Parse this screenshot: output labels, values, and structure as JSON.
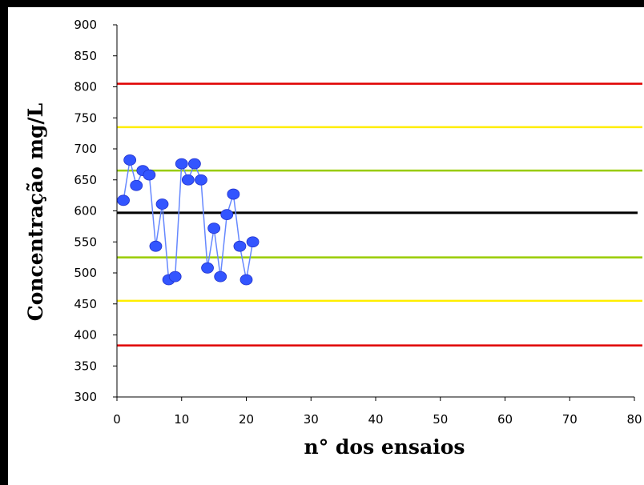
{
  "chart_data": {
    "type": "line",
    "title": "",
    "xlabel": "n° dos ensaios",
    "ylabel": "Concentração mg/L",
    "xlim": [
      0,
      80
    ],
    "ylim": [
      300,
      900
    ],
    "x_ticks": [
      0,
      10,
      20,
      30,
      40,
      50,
      60,
      70,
      80
    ],
    "y_ticks": [
      300,
      350,
      400,
      450,
      500,
      550,
      600,
      650,
      700,
      750,
      800,
      850,
      900
    ],
    "x_tick_labels": [
      "0",
      "10",
      "20",
      "30",
      "40",
      "50",
      "60",
      "70",
      "80"
    ],
    "y_tick_labels": [
      "300",
      "350",
      "400",
      "450",
      "500",
      "550",
      "600",
      "650",
      "700",
      "750",
      "800",
      "850",
      "900"
    ],
    "grid": false,
    "series": [
      {
        "x": [
          1,
          2,
          3,
          4,
          5,
          6,
          7,
          8,
          9,
          10,
          11,
          12,
          13,
          14,
          15,
          16,
          17,
          18,
          19,
          20,
          21
        ],
        "y": [
          617,
          682,
          641,
          665,
          658,
          543,
          611,
          489,
          494,
          676,
          650,
          676,
          650,
          508,
          572,
          494,
          594,
          627,
          543,
          489,
          550
        ],
        "color": "#3355ff"
      }
    ],
    "reference_lines": [
      {
        "y": 805,
        "color": "#e00000"
      },
      {
        "y": 735,
        "color": "#ffee00"
      },
      {
        "y": 665,
        "color": "#99cc00"
      },
      {
        "y": 597,
        "color": "#000000"
      },
      {
        "y": 525,
        "color": "#99cc00"
      },
      {
        "y": 455,
        "color": "#ffee00"
      },
      {
        "y": 383,
        "color": "#e00000"
      }
    ]
  }
}
